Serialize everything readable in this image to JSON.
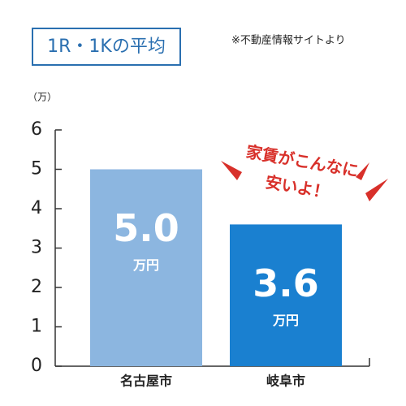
{
  "chart_data": {
    "type": "bar",
    "title": "1R・1Kの平均",
    "note": "※不動産情報サイトより",
    "y_unit": "（万）",
    "categories": [
      "名古屋市",
      "岐阜市"
    ],
    "values": [
      5.0,
      3.6
    ],
    "value_labels": [
      "5.0",
      "3.6"
    ],
    "value_unit": "万円",
    "colors": [
      "#8cb6e0",
      "#1a80d0"
    ],
    "ylim": [
      0,
      6
    ],
    "yticks": [
      0,
      1,
      2,
      3,
      4,
      5,
      6
    ],
    "annotation": [
      "家賃がこんなに",
      "安いよ！"
    ],
    "annotation_color": "#d8302a"
  }
}
